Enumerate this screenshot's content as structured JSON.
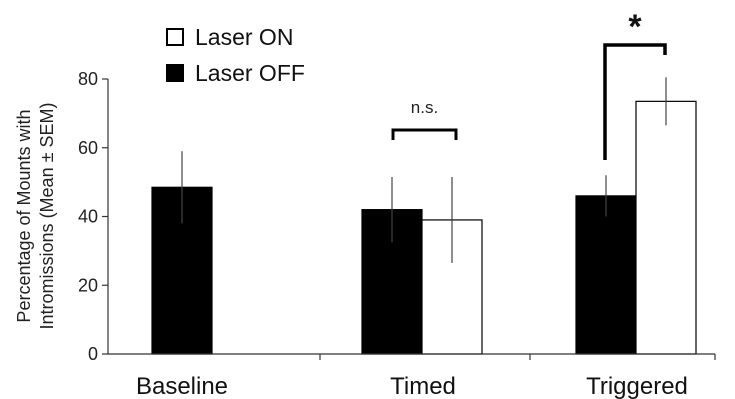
{
  "chart_data": {
    "type": "bar",
    "categories": [
      "Baseline",
      "Timed",
      "Triggered"
    ],
    "ylabel": [
      "Percentage of Mounts with",
      "Intromissions (Mean ± SEM)"
    ],
    "ylim": [
      0,
      80
    ],
    "yticks": [
      0,
      20,
      40,
      60,
      80
    ],
    "grid": false,
    "legend_position": "top-left",
    "series": [
      {
        "name": "Laser OFF",
        "color": "#000000",
        "fill": "#000000",
        "values": [
          48.5,
          42,
          46
        ],
        "errors": [
          10.5,
          9.5,
          6
        ]
      },
      {
        "name": "Laser ON",
        "color": "#000000",
        "fill": "#ffffff",
        "values": [
          null,
          39,
          73.5
        ],
        "errors": [
          null,
          12.5,
          7
        ]
      }
    ],
    "legend": [
      {
        "label": "Laser ON",
        "fill": "#ffffff"
      },
      {
        "label": "Laser OFF",
        "fill": "#000000"
      }
    ],
    "annotations": [
      {
        "label": "n.s.",
        "category": "Timed",
        "kind": "bracket"
      },
      {
        "label": "*",
        "category": "Triggered",
        "kind": "bracket"
      }
    ]
  }
}
